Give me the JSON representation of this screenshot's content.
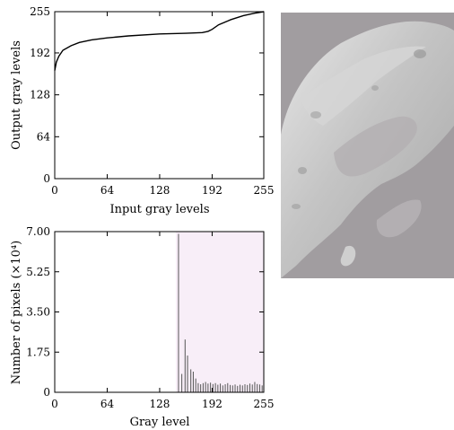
{
  "chart_data": [
    {
      "type": "line",
      "xlabel": "Input gray levels",
      "ylabel": "Output gray levels",
      "xlim": [
        0,
        255
      ],
      "ylim": [
        0,
        255
      ],
      "xticks": [
        0,
        64,
        128,
        192,
        255
      ],
      "yticks": [
        0,
        64,
        128,
        192,
        255
      ],
      "xtick_labels": [
        "0",
        "64",
        "128",
        "192",
        "255"
      ],
      "ytick_labels": [
        "0",
        "64",
        "128",
        "192",
        "255"
      ],
      "grid": false,
      "series": [
        {
          "x": [
            0,
            2,
            5,
            10,
            20,
            30,
            45,
            64,
            90,
            128,
            160,
            180,
            187,
            192,
            200,
            215,
            230,
            245,
            255
          ],
          "y": [
            165,
            178,
            187,
            196,
            203,
            208,
            212,
            215,
            218,
            221,
            222,
            223,
            225,
            228,
            235,
            243,
            249,
            253,
            255
          ]
        }
      ]
    },
    {
      "type": "bar",
      "xlabel": "Gray level",
      "ylabel": "Number of pixels (×10⁴)",
      "xlim": [
        0,
        255
      ],
      "ylim": [
        0,
        7.0
      ],
      "xticks": [
        0,
        64,
        128,
        192,
        255
      ],
      "yticks": [
        0,
        1.75,
        3.5,
        5.25,
        7.0
      ],
      "xtick_labels": [
        "0",
        "64",
        "128",
        "192",
        "255"
      ],
      "ytick_labels": [
        "0",
        "1.75",
        "3.50",
        "5.25",
        "7.00"
      ],
      "grid": false,
      "x": [
        151,
        155,
        159,
        162,
        166,
        169,
        172,
        175,
        178,
        181,
        184,
        187,
        190,
        193,
        196,
        199,
        202,
        205,
        208,
        211,
        214,
        217,
        220,
        223,
        226,
        229,
        232,
        235,
        238,
        241,
        244,
        247,
        250,
        253
      ],
      "values": [
        6.9,
        0.8,
        2.3,
        1.6,
        1.0,
        0.9,
        0.6,
        0.4,
        0.35,
        0.4,
        0.45,
        0.38,
        0.42,
        0.36,
        0.4,
        0.33,
        0.38,
        0.3,
        0.35,
        0.4,
        0.32,
        0.3,
        0.34,
        0.28,
        0.33,
        0.3,
        0.35,
        0.32,
        0.38,
        0.34,
        0.45,
        0.36,
        0.34,
        0.3
      ]
    }
  ]
}
